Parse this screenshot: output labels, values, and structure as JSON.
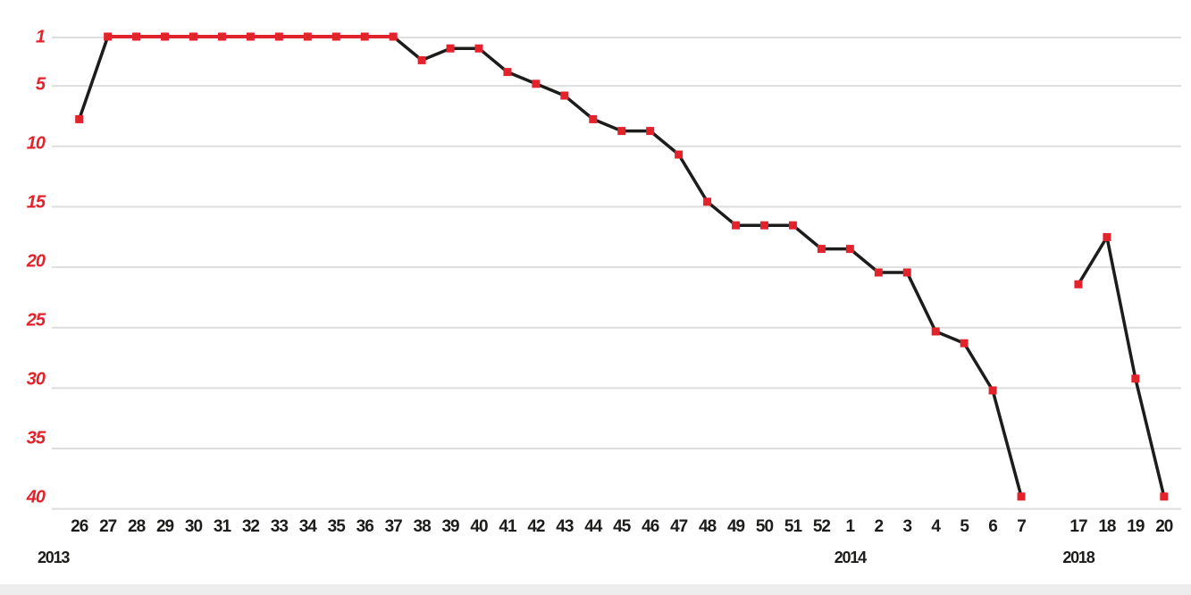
{
  "chart_data": {
    "type": "line",
    "title": "",
    "y_axis_inverted": true,
    "y_ticks": [
      1,
      5,
      10,
      15,
      20,
      25,
      30,
      35,
      40
    ],
    "y_range": [
      1,
      40
    ],
    "grid": true,
    "legend": null,
    "series_groups": [
      {
        "year_label": "2013",
        "connected_to_previous": false,
        "weeks": [
          26,
          27,
          28,
          29,
          30,
          31,
          32,
          33,
          34,
          35,
          36,
          37,
          38,
          39,
          40,
          41,
          42,
          43,
          44,
          45,
          46,
          47,
          48,
          49,
          50,
          51,
          52
        ],
        "positions": [
          8,
          1,
          1,
          1,
          1,
          1,
          1,
          1,
          1,
          1,
          1,
          1,
          3,
          2,
          2,
          4,
          5,
          6,
          8,
          9,
          9,
          11,
          15,
          17,
          17,
          17,
          19
        ]
      },
      {
        "year_label": "2014",
        "connected_to_previous": true,
        "weeks": [
          1,
          2,
          3,
          4,
          5,
          6,
          7
        ],
        "positions": [
          19,
          21,
          21,
          26,
          27,
          31,
          40
        ]
      },
      {
        "year_label": "2018",
        "connected_to_previous": false,
        "weeks": [
          17,
          18,
          19,
          20
        ],
        "positions": [
          22,
          18,
          30,
          40
        ]
      }
    ],
    "colors": {
      "line": "#1c1c1a",
      "number_one_segment": "#e3232c",
      "marker": "#e3232c",
      "y_tick_label": "#e3232c",
      "x_tick_label": "#1c1c1a",
      "year_label": "#1c1c1a",
      "gridline": "#dedede",
      "footer_bar": "#ededed",
      "background": "#ffffff"
    }
  }
}
